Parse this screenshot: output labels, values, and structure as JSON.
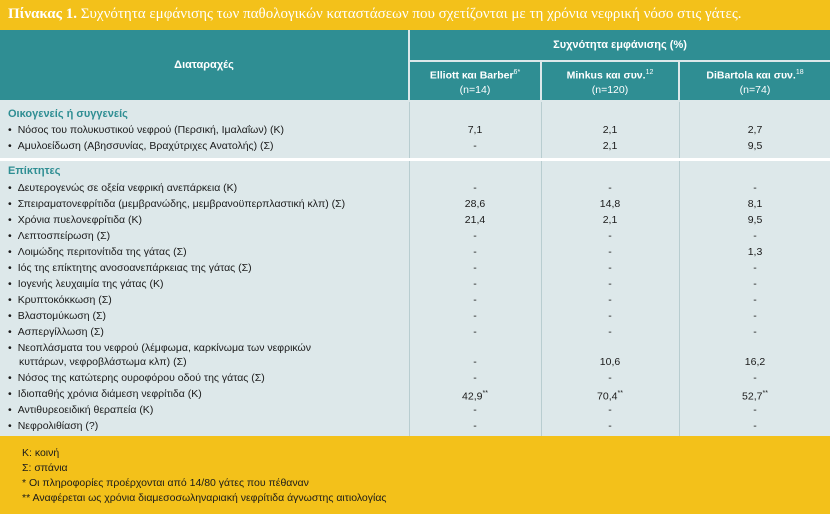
{
  "caption": {
    "label": "Πίνακας 1.",
    "text": "Συχνότητα εμφάνισης των παθολογικών καταστάσεων που σχετίζονται με τη χρόνια νεφρική νόσο στις γάτες."
  },
  "header": {
    "disorders": "Διαταραχές",
    "group": "Συχνότητα εμφάνισης (%)",
    "columns": [
      {
        "name": "Elliott και Barber",
        "sup": "6*",
        "n": "(n=14)"
      },
      {
        "name": "Minkus και συν.",
        "sup": "12",
        "n": "(n=120)"
      },
      {
        "name": "DiBartola και συν.",
        "sup": "18",
        "n": "(n=74)"
      }
    ]
  },
  "sections": {
    "familial": {
      "title": "Οικογενείς ή συγγενείς",
      "rows": [
        {
          "label": "Νόσος του πολυκυστικού νεφρού (Περσική, Ιμαλαΐων) (Κ)",
          "v1": "7,1",
          "v2": "2,1",
          "v3": "2,7"
        },
        {
          "label": "Αμυλοείδωση (Αβησσυνίας, Βραχύτριχες Ανατολής) (Σ)",
          "v1": "-",
          "v2": "2,1",
          "v3": "9,5"
        }
      ]
    },
    "acquired": {
      "title": "Επίκτητες",
      "rows": [
        {
          "label": "Δευτερογενώς σε οξεία νεφρική ανεπάρκεια (Κ)",
          "v1": "-",
          "v2": "-",
          "v3": "-"
        },
        {
          "label": "Σπειραματονεφρίτιδα (μεμβρανώδης, μεμβρανοϋπερπλαστική κλπ) (Σ)",
          "v1": "28,6",
          "v2": "14,8",
          "v3": "8,1"
        },
        {
          "label": "Χρόνια πυελονεφρίτιδα (Κ)",
          "v1": "21,4",
          "v2": "2,1",
          "v3": "9,5"
        },
        {
          "label": "Λεπτοσπείρωση (Σ)",
          "v1": "-",
          "v2": "-",
          "v3": "-"
        },
        {
          "label": "Λοιμώδης περιτονίτιδα της γάτας (Σ)",
          "v1": "-",
          "v2": "-",
          "v3": "1,3"
        },
        {
          "label": "Ιός της επίκτητης ανοσοανεπάρκειας της γάτας (Σ)",
          "v1": "-",
          "v2": "-",
          "v3": "-"
        },
        {
          "label": "Ιογενής λευχαιμία της γάτας (Κ)",
          "v1": "-",
          "v2": "-",
          "v3": "-"
        },
        {
          "label": "Κρυπτοκόκκωση (Σ)",
          "v1": "-",
          "v2": "-",
          "v3": "-"
        },
        {
          "label": "Βλαστομύκωση (Σ)",
          "v1": "-",
          "v2": "-",
          "v3": "-"
        },
        {
          "label": "Ασπεργίλλωση (Σ)",
          "v1": "-",
          "v2": "-",
          "v3": "-"
        },
        {
          "label": "Νεοπλάσματα του νεφρού (λέμφωμα, καρκίνωμα των νεφρικών",
          "label2": "κυττάρων, νεφροβλάστωμα κλπ) (Σ)",
          "v1": "-",
          "v2": "10,6",
          "v3": "16,2"
        },
        {
          "label": "Νόσος της κατώτερης ουροφόρου οδού της γάτας (Σ)",
          "v1": "-",
          "v2": "-",
          "v3": "-"
        },
        {
          "label": "Ιδιοπαθής χρόνια διάμεση νεφρίτιδα (Κ)",
          "v1": "42,9",
          "v1sup": "**",
          "v2": "70,4",
          "v2sup": "**",
          "v3": "52,7",
          "v3sup": "**"
        },
        {
          "label": "Αντιθυρεοειδική θεραπεία (Κ)",
          "v1": "-",
          "v2": "-",
          "v3": "-"
        },
        {
          "label": "Νεφρολιθίαση (?)",
          "v1": "-",
          "v2": "-",
          "v3": "-"
        }
      ]
    }
  },
  "footer": {
    "lines": [
      "Κ: κοινή",
      "Σ: σπάνια",
      "* Οι πληροφορίες προέρχονται από 14/80 γάτες που πέθαναν",
      "** Αναφέρεται ως χρόνια διαμεσοσωληναριακή νεφρίτιδα άγνωστης αιτιολογίας"
    ]
  },
  "colors": {
    "teal": "#2f8e93",
    "yellow": "#f3c11a",
    "row_bg": "#dde8ea"
  }
}
